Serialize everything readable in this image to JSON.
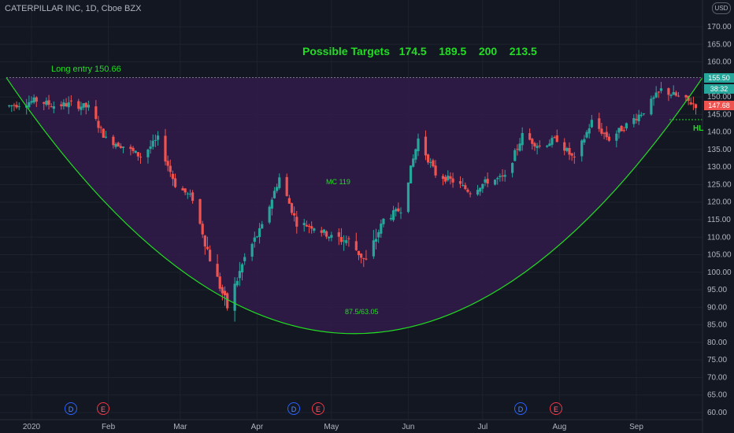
{
  "header": {
    "symbol": "CATERPILLAR INC, 1D, Cboe BZX",
    "currency": "USD"
  },
  "annotations": {
    "targets": "Possible Targets   174.5    189.5    200    213.5",
    "long_entry": "Long entry 150.66",
    "mc": "MC 119",
    "bottom": "87.5/63.05",
    "hl": "HL"
  },
  "price_tags": {
    "level": "155.50",
    "countdown": "38:32",
    "last": "147.68"
  },
  "colors": {
    "up": "#26a69a",
    "down": "#ef5350",
    "curve": "#22dd22",
    "shade": "#311b4a"
  },
  "events": [
    {
      "label": "D",
      "kind": "dividend",
      "date": "2020-01-17"
    },
    {
      "label": "E",
      "kind": "earnings",
      "date": "2020-01-31"
    },
    {
      "label": "D",
      "kind": "dividend",
      "date": "2020-04-17"
    },
    {
      "label": "E",
      "kind": "earnings",
      "date": "2020-04-28"
    },
    {
      "label": "D",
      "kind": "dividend",
      "date": "2020-07-17"
    },
    {
      "label": "E",
      "kind": "earnings",
      "date": "2020-07-31"
    }
  ],
  "chart_data": {
    "type": "candlestick",
    "ylim": [
      60,
      175
    ],
    "y_ticks": [
      "170.00",
      "165.00",
      "160.00",
      "155.00",
      "150.00",
      "145.00",
      "140.00",
      "135.00",
      "130.00",
      "125.00",
      "120.00",
      "115.00",
      "110.00",
      "105.00",
      "100.00",
      "95.00",
      "90.00",
      "85.00",
      "80.00",
      "75.00",
      "70.00",
      "65.00",
      "60.00"
    ],
    "x_ticks": [
      "2020",
      "Feb",
      "Mar",
      "Apr",
      "May",
      "Jun",
      "Jul",
      "Aug",
      "Sep"
    ],
    "reference_level": 155.5,
    "cup_bottom": 82.5,
    "closes": [
      {
        "date": "2019-12-20",
        "close": 147
      },
      {
        "date": "2019-12-27",
        "close": 148
      },
      {
        "date": "2020-01-03",
        "close": 149
      },
      {
        "date": "2020-01-10",
        "close": 147.5
      },
      {
        "date": "2020-01-17",
        "close": 148
      },
      {
        "date": "2020-01-24",
        "close": 147
      },
      {
        "date": "2020-01-31",
        "close": 138
      },
      {
        "date": "2020-02-07",
        "close": 136
      },
      {
        "date": "2020-02-14",
        "close": 133
      },
      {
        "date": "2020-02-21",
        "close": 138
      },
      {
        "date": "2020-02-28",
        "close": 125
      },
      {
        "date": "2020-03-06",
        "close": 121
      },
      {
        "date": "2020-03-13",
        "close": 104
      },
      {
        "date": "2020-03-20",
        "close": 90
      },
      {
        "date": "2020-03-27",
        "close": 104
      },
      {
        "date": "2020-04-03",
        "close": 113
      },
      {
        "date": "2020-04-10",
        "close": 127
      },
      {
        "date": "2020-04-17",
        "close": 114
      },
      {
        "date": "2020-04-24",
        "close": 113
      },
      {
        "date": "2020-05-01",
        "close": 110
      },
      {
        "date": "2020-05-08",
        "close": 109
      },
      {
        "date": "2020-05-15",
        "close": 103
      },
      {
        "date": "2020-05-22",
        "close": 115
      },
      {
        "date": "2020-05-29",
        "close": 118
      },
      {
        "date": "2020-06-05",
        "close": 138
      },
      {
        "date": "2020-06-12",
        "close": 128
      },
      {
        "date": "2020-06-19",
        "close": 126
      },
      {
        "date": "2020-06-26",
        "close": 123
      },
      {
        "date": "2020-07-03",
        "close": 126
      },
      {
        "date": "2020-07-10",
        "close": 127
      },
      {
        "date": "2020-07-17",
        "close": 139
      },
      {
        "date": "2020-07-24",
        "close": 136
      },
      {
        "date": "2020-07-31",
        "close": 138
      },
      {
        "date": "2020-08-07",
        "close": 132
      },
      {
        "date": "2020-08-14",
        "close": 143
      },
      {
        "date": "2020-08-21",
        "close": 138
      },
      {
        "date": "2020-08-28",
        "close": 142
      },
      {
        "date": "2020-09-04",
        "close": 146
      },
      {
        "date": "2020-09-11",
        "close": 152
      },
      {
        "date": "2020-09-18",
        "close": 150
      },
      {
        "date": "2020-09-25",
        "close": 147.68
      }
    ]
  }
}
